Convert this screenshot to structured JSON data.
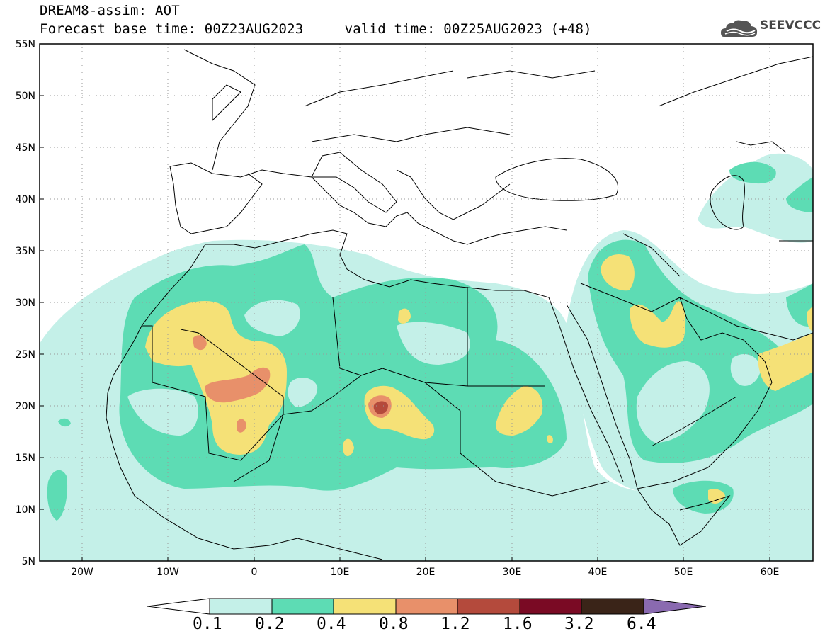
{
  "header": {
    "line1": "DREAM8-assim: AOT",
    "line2": "Forecast base time: 00Z23AUG2023     valid time: 00Z25AUG2023 (+48)"
  },
  "logo": {
    "icon": "cloud-logo-icon",
    "text": "SEEVCCC",
    "color": "#555555"
  },
  "map": {
    "lon_range": [
      -25,
      65
    ],
    "lat_range": [
      5,
      55
    ],
    "grid": "dotted",
    "lat_ticks": [
      "5N",
      "10N",
      "15N",
      "20N",
      "25N",
      "30N",
      "35N",
      "40N",
      "45N",
      "50N",
      "55N"
    ],
    "lon_ticks": [
      "20W",
      "10W",
      "0",
      "10E",
      "20E",
      "30E",
      "40E",
      "50E",
      "60E"
    ]
  },
  "colorbar": {
    "labels": [
      "0.1",
      "0.2",
      "0.4",
      "0.8",
      "1.2",
      "1.6",
      "3.2",
      "6.4"
    ],
    "colors": [
      "#ffffff",
      "#c4f0e8",
      "#5ddcb4",
      "#f5e177",
      "#e8906a",
      "#b44a3c",
      "#7a0a24",
      "#3a2418",
      "#8a6ab0"
    ]
  }
}
